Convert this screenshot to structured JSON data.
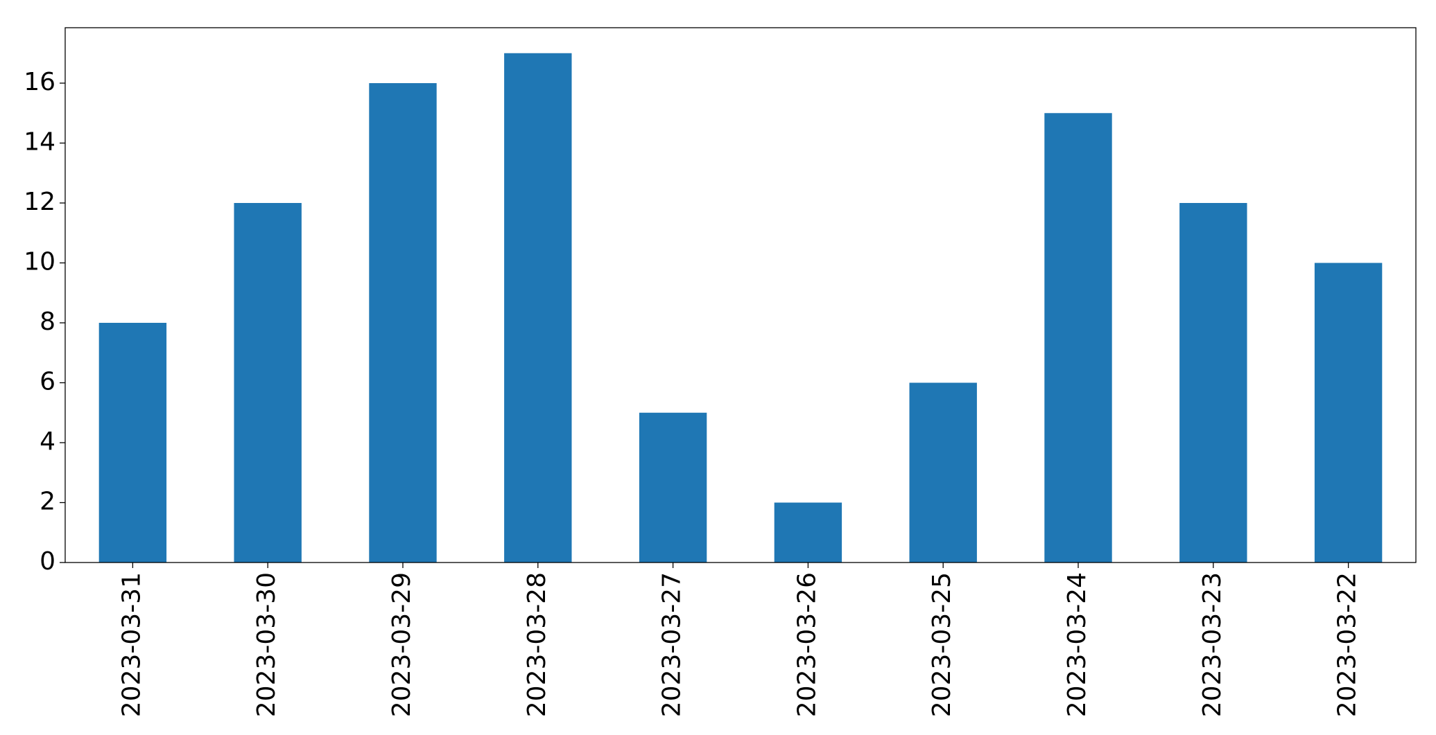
{
  "chart_data": {
    "type": "bar",
    "categories": [
      "2023-03-31",
      "2023-03-30",
      "2023-03-29",
      "2023-03-28",
      "2023-03-27",
      "2023-03-26",
      "2023-03-25",
      "2023-03-24",
      "2023-03-23",
      "2023-03-22"
    ],
    "values": [
      8,
      12,
      16,
      17,
      5,
      2,
      6,
      15,
      12,
      10
    ],
    "color": "#1f77b4",
    "ylim": [
      0,
      17.85
    ],
    "yticks": [
      0,
      2,
      4,
      6,
      8,
      10,
      12,
      14,
      16
    ],
    "grid": false
  }
}
